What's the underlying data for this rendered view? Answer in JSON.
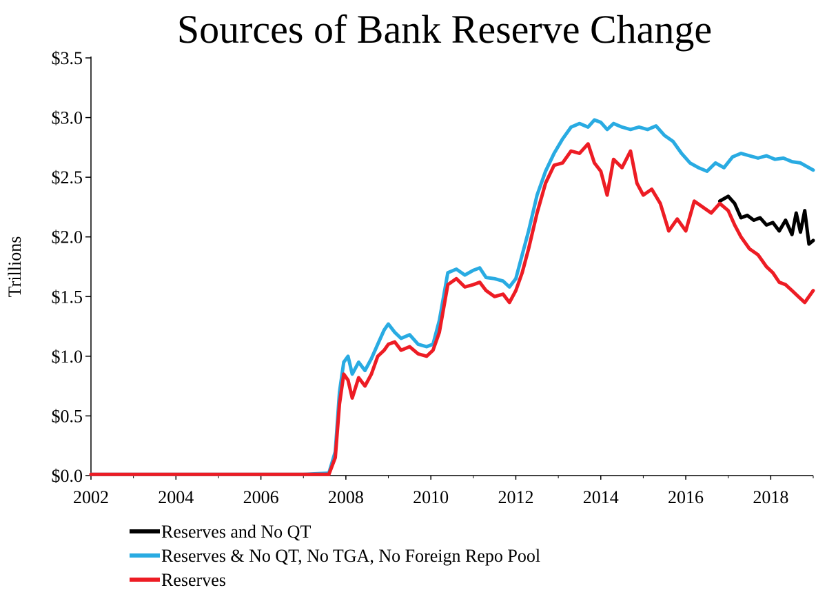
{
  "chart_data": {
    "type": "line",
    "title": "Sources of Bank Reserve Change",
    "xlabel": "",
    "ylabel": "Trillions",
    "xlim": [
      2002,
      2019
    ],
    "ylim": [
      0,
      3.5
    ],
    "x_ticks": [
      2002,
      2004,
      2006,
      2008,
      2010,
      2012,
      2014,
      2016,
      2018
    ],
    "x_tick_labels": [
      "2002",
      "2004",
      "2006",
      "2008",
      "2010",
      "2012",
      "2014",
      "2016",
      "2018"
    ],
    "y_ticks": [
      0,
      0.5,
      1,
      1.5,
      2,
      2.5,
      3,
      3.5
    ],
    "y_tick_labels": [
      "$0.0",
      "$0.5",
      "$1.0",
      "$1.5",
      "$2.0",
      "$2.5",
      "$3.0",
      "$3.5"
    ],
    "grid": false,
    "legend_position": "bottom-left",
    "series": [
      {
        "name": "Reserves and No QT",
        "color": "#000000",
        "x": [
          2016.8,
          2017.0,
          2017.15,
          2017.3,
          2017.45,
          2017.6,
          2017.75,
          2017.9,
          2018.05,
          2018.2,
          2018.35,
          2018.5,
          2018.6,
          2018.7,
          2018.8,
          2018.9,
          2019.0
        ],
        "y": [
          2.3,
          2.34,
          2.28,
          2.16,
          2.18,
          2.14,
          2.16,
          2.1,
          2.12,
          2.05,
          2.14,
          2.02,
          2.2,
          2.04,
          2.22,
          1.94,
          1.97
        ]
      },
      {
        "name": "Reserves & No QT, No TGA, No Foreign Repo Pool",
        "color": "#29abe2",
        "x": [
          2002.0,
          2003.0,
          2004.0,
          2005.0,
          2006.0,
          2007.0,
          2007.6,
          2007.75,
          2007.85,
          2007.95,
          2008.05,
          2008.15,
          2008.3,
          2008.45,
          2008.6,
          2008.75,
          2008.9,
          2009.0,
          2009.15,
          2009.3,
          2009.5,
          2009.7,
          2009.9,
          2010.05,
          2010.2,
          2010.4,
          2010.6,
          2010.8,
          2011.0,
          2011.15,
          2011.3,
          2011.5,
          2011.7,
          2011.85,
          2012.0,
          2012.15,
          2012.3,
          2012.5,
          2012.7,
          2012.9,
          2013.1,
          2013.3,
          2013.5,
          2013.7,
          2013.85,
          2014.0,
          2014.15,
          2014.3,
          2014.5,
          2014.7,
          2014.9,
          2015.1,
          2015.3,
          2015.5,
          2015.7,
          2015.9,
          2016.1,
          2016.3,
          2016.5,
          2016.7,
          2016.9,
          2017.1,
          2017.3,
          2017.5,
          2017.7,
          2017.9,
          2018.1,
          2018.3,
          2018.5,
          2018.7,
          2018.9,
          2019.0
        ],
        "y": [
          0.01,
          0.01,
          0.01,
          0.01,
          0.01,
          0.01,
          0.02,
          0.2,
          0.7,
          0.95,
          1.0,
          0.85,
          0.95,
          0.88,
          0.98,
          1.1,
          1.22,
          1.27,
          1.2,
          1.15,
          1.18,
          1.1,
          1.08,
          1.1,
          1.3,
          1.7,
          1.73,
          1.68,
          1.72,
          1.74,
          1.66,
          1.65,
          1.63,
          1.58,
          1.65,
          1.85,
          2.05,
          2.35,
          2.55,
          2.7,
          2.82,
          2.92,
          2.95,
          2.92,
          2.98,
          2.96,
          2.9,
          2.95,
          2.92,
          2.9,
          2.92,
          2.9,
          2.93,
          2.85,
          2.8,
          2.7,
          2.62,
          2.58,
          2.55,
          2.62,
          2.58,
          2.67,
          2.7,
          2.68,
          2.66,
          2.68,
          2.65,
          2.66,
          2.63,
          2.62,
          2.58,
          2.56
        ]
      },
      {
        "name": "Reserves",
        "color": "#ed1c24",
        "x": [
          2002.0,
          2003.0,
          2004.0,
          2005.0,
          2006.0,
          2007.0,
          2007.6,
          2007.75,
          2007.85,
          2007.95,
          2008.05,
          2008.15,
          2008.3,
          2008.45,
          2008.6,
          2008.75,
          2008.9,
          2009.0,
          2009.15,
          2009.3,
          2009.5,
          2009.7,
          2009.9,
          2010.05,
          2010.2,
          2010.4,
          2010.6,
          2010.8,
          2011.0,
          2011.15,
          2011.3,
          2011.5,
          2011.7,
          2011.85,
          2012.0,
          2012.15,
          2012.3,
          2012.5,
          2012.7,
          2012.9,
          2013.1,
          2013.3,
          2013.5,
          2013.7,
          2013.85,
          2014.0,
          2014.15,
          2014.3,
          2014.5,
          2014.7,
          2014.85,
          2015.0,
          2015.2,
          2015.4,
          2015.6,
          2015.8,
          2016.0,
          2016.2,
          2016.4,
          2016.6,
          2016.8,
          2017.0,
          2017.15,
          2017.3,
          2017.5,
          2017.7,
          2017.9,
          2018.05,
          2018.2,
          2018.35,
          2018.5,
          2018.65,
          2018.8,
          2018.9,
          2019.0
        ],
        "y": [
          0.01,
          0.01,
          0.01,
          0.01,
          0.01,
          0.01,
          0.01,
          0.15,
          0.6,
          0.85,
          0.8,
          0.65,
          0.82,
          0.75,
          0.85,
          1.0,
          1.05,
          1.1,
          1.12,
          1.05,
          1.08,
          1.02,
          1.0,
          1.05,
          1.2,
          1.6,
          1.65,
          1.58,
          1.6,
          1.62,
          1.55,
          1.5,
          1.52,
          1.45,
          1.55,
          1.7,
          1.9,
          2.2,
          2.45,
          2.6,
          2.62,
          2.72,
          2.7,
          2.78,
          2.62,
          2.55,
          2.35,
          2.65,
          2.58,
          2.72,
          2.45,
          2.35,
          2.4,
          2.28,
          2.05,
          2.15,
          2.05,
          2.3,
          2.25,
          2.2,
          2.28,
          2.22,
          2.1,
          2.0,
          1.9,
          1.85,
          1.75,
          1.7,
          1.62,
          1.6,
          1.55,
          1.5,
          1.45,
          1.5,
          1.55
        ]
      }
    ]
  }
}
